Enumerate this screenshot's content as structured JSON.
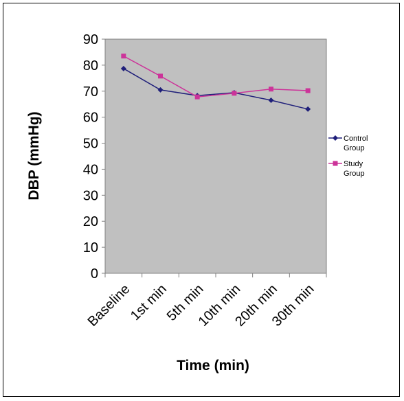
{
  "chart_data": {
    "type": "line",
    "title": "",
    "xlabel": "Time (min)",
    "ylabel": "DBP (mmHg)",
    "categories": [
      "Baseline",
      "1st min",
      "5th min",
      "10th min",
      "20th min",
      "30th min"
    ],
    "ylim": [
      0,
      90
    ],
    "yticks": [
      0,
      10,
      20,
      30,
      40,
      50,
      60,
      70,
      80,
      90
    ],
    "grid": false,
    "plot_background": "#c0c0c0",
    "legend_position": "right",
    "series": [
      {
        "name": "Control Group",
        "legend_lines": [
          "Control",
          "Group"
        ],
        "color": "#1f1f7a",
        "marker": "diamond",
        "values": [
          78.7,
          70.5,
          68.3,
          69.4,
          66.5,
          63.1
        ]
      },
      {
        "name": "Study Group",
        "legend_lines": [
          "Study",
          "Group"
        ],
        "color": "#cc3399",
        "marker": "square",
        "values": [
          83.5,
          75.8,
          67.8,
          69.2,
          70.8,
          70.2
        ]
      }
    ]
  }
}
